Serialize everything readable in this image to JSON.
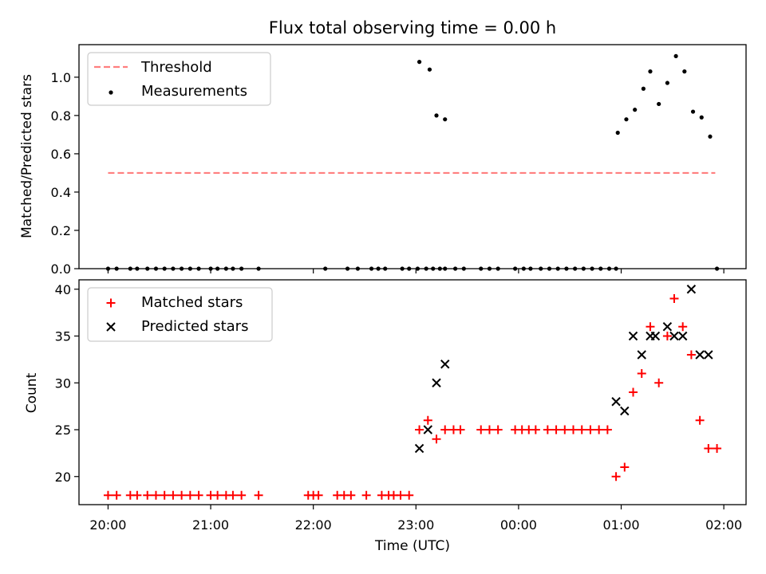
{
  "chart_data": [
    {
      "type": "scatter",
      "title": "Flux total observing time = 0.00 h",
      "xlabel": "",
      "ylabel": "Matched/Predicted stars",
      "xlim": [
        "19:43",
        "02:13"
      ],
      "ylim": [
        0,
        1.17
      ],
      "yticks": [
        "0.0",
        "0.2",
        "0.4",
        "0.6",
        "0.8",
        "1.0"
      ],
      "grid": false,
      "legend_position": "top-left",
      "threshold": {
        "name": "Threshold",
        "value": 0.5,
        "x_start": "20:00",
        "x_end": "01:55",
        "color": "#ff7f7f",
        "style": "dashed"
      },
      "series": [
        {
          "name": "Measurements",
          "marker": "dot",
          "color": "#000000",
          "points": [
            [
              "20:00",
              0
            ],
            [
              "20:05",
              0
            ],
            [
              "20:13",
              0
            ],
            [
              "20:17",
              0
            ],
            [
              "20:23",
              0
            ],
            [
              "20:28",
              0
            ],
            [
              "20:33",
              0
            ],
            [
              "20:38",
              0
            ],
            [
              "20:43",
              0
            ],
            [
              "20:48",
              0
            ],
            [
              "20:53",
              0
            ],
            [
              "21:00",
              0
            ],
            [
              "21:04",
              0
            ],
            [
              "21:09",
              0
            ],
            [
              "21:13",
              0
            ],
            [
              "21:18",
              0
            ],
            [
              "21:28",
              0
            ],
            [
              "22:07",
              0
            ],
            [
              "22:20",
              0
            ],
            [
              "22:26",
              0
            ],
            [
              "22:34",
              0
            ],
            [
              "22:38",
              0
            ],
            [
              "22:42",
              0
            ],
            [
              "22:52",
              0
            ],
            [
              "22:56",
              0
            ],
            [
              "23:01",
              0
            ],
            [
              "23:06",
              0
            ],
            [
              "23:10",
              0
            ],
            [
              "23:14",
              0
            ],
            [
              "23:17",
              0
            ],
            [
              "23:02",
              1.08
            ],
            [
              "23:08",
              1.04
            ],
            [
              "23:12",
              0.8
            ],
            [
              "23:17",
              0.78
            ],
            [
              "23:23",
              0
            ],
            [
              "23:28",
              0
            ],
            [
              "23:38",
              0
            ],
            [
              "23:43",
              0
            ],
            [
              "23:48",
              0
            ],
            [
              "23:58",
              0
            ],
            [
              "24:03",
              0
            ],
            [
              "24:07",
              0
            ],
            [
              "24:13",
              0
            ],
            [
              "24:18",
              0
            ],
            [
              "24:23",
              0
            ],
            [
              "24:28",
              0
            ],
            [
              "24:33",
              0
            ],
            [
              "24:38",
              0
            ],
            [
              "24:43",
              0
            ],
            [
              "24:48",
              0
            ],
            [
              "24:53",
              0
            ],
            [
              "24:57",
              0
            ],
            [
              "24:58",
              0.71
            ],
            [
              "25:03",
              0.78
            ],
            [
              "25:08",
              0.83
            ],
            [
              "25:13",
              0.94
            ],
            [
              "25:17",
              1.03
            ],
            [
              "25:22",
              0.86
            ],
            [
              "25:27",
              0.97
            ],
            [
              "25:32",
              1.11
            ],
            [
              "25:37",
              1.03
            ],
            [
              "25:42",
              0.82
            ],
            [
              "25:47",
              0.79
            ],
            [
              "25:52",
              0.69
            ],
            [
              "25:56",
              0
            ]
          ]
        }
      ]
    },
    {
      "type": "scatter",
      "title": "",
      "xlabel": "Time (UTC)",
      "ylabel": "Count",
      "xlim": [
        "19:43",
        "02:13"
      ],
      "ylim": [
        17,
        41
      ],
      "yticks": [
        "20",
        "25",
        "30",
        "35",
        "40"
      ],
      "xticks": [
        "20:00",
        "21:00",
        "22:00",
        "23:00",
        "00:00",
        "01:00",
        "02:00"
      ],
      "grid": false,
      "legend_position": "top-left",
      "series": [
        {
          "name": "Matched stars",
          "marker": "plus",
          "color": "#ff0000",
          "points": [
            [
              "20:00",
              18
            ],
            [
              "20:05",
              18
            ],
            [
              "20:13",
              18
            ],
            [
              "20:17",
              18
            ],
            [
              "20:23",
              18
            ],
            [
              "20:28",
              18
            ],
            [
              "20:33",
              18
            ],
            [
              "20:38",
              18
            ],
            [
              "20:43",
              18
            ],
            [
              "20:48",
              18
            ],
            [
              "20:53",
              18
            ],
            [
              "21:00",
              18
            ],
            [
              "21:04",
              18
            ],
            [
              "21:09",
              18
            ],
            [
              "21:13",
              18
            ],
            [
              "21:18",
              18
            ],
            [
              "21:28",
              18
            ],
            [
              "21:57",
              18
            ],
            [
              "22:00",
              18
            ],
            [
              "22:03",
              18
            ],
            [
              "22:14",
              18
            ],
            [
              "22:18",
              18
            ],
            [
              "22:22",
              18
            ],
            [
              "22:31",
              18
            ],
            [
              "22:40",
              18
            ],
            [
              "22:44",
              18
            ],
            [
              "22:47",
              18
            ],
            [
              "22:51",
              18
            ],
            [
              "22:56",
              18
            ],
            [
              "23:02",
              25
            ],
            [
              "23:07",
              26
            ],
            [
              "23:12",
              24
            ],
            [
              "23:17",
              25
            ],
            [
              "23:22",
              25
            ],
            [
              "23:26",
              25
            ],
            [
              "23:38",
              25
            ],
            [
              "23:43",
              25
            ],
            [
              "23:48",
              25
            ],
            [
              "23:58",
              25
            ],
            [
              "24:02",
              25
            ],
            [
              "24:06",
              25
            ],
            [
              "24:10",
              25
            ],
            [
              "24:17",
              25
            ],
            [
              "24:22",
              25
            ],
            [
              "24:27",
              25
            ],
            [
              "24:32",
              25
            ],
            [
              "24:37",
              25
            ],
            [
              "24:42",
              25
            ],
            [
              "24:47",
              25
            ],
            [
              "24:52",
              25
            ],
            [
              "24:57",
              20
            ],
            [
              "25:02",
              21
            ],
            [
              "25:07",
              29
            ],
            [
              "25:12",
              31
            ],
            [
              "25:17",
              36
            ],
            [
              "25:22",
              30
            ],
            [
              "25:27",
              35
            ],
            [
              "25:31",
              39
            ],
            [
              "25:36",
              36
            ],
            [
              "25:41",
              33
            ],
            [
              "25:46",
              26
            ],
            [
              "25:51",
              23
            ],
            [
              "25:56",
              23
            ]
          ]
        },
        {
          "name": "Predicted stars",
          "marker": "x",
          "color": "#000000",
          "points": [
            [
              "23:02",
              23
            ],
            [
              "23:07",
              25
            ],
            [
              "23:12",
              30
            ],
            [
              "23:17",
              32
            ],
            [
              "24:57",
              28
            ],
            [
              "25:02",
              27
            ],
            [
              "25:07",
              35
            ],
            [
              "25:12",
              33
            ],
            [
              "25:17",
              35
            ],
            [
              "25:20",
              35
            ],
            [
              "25:27",
              36
            ],
            [
              "25:31",
              35
            ],
            [
              "25:36",
              35
            ],
            [
              "25:41",
              40
            ],
            [
              "25:46",
              33
            ],
            [
              "25:51",
              33
            ]
          ]
        }
      ]
    }
  ]
}
